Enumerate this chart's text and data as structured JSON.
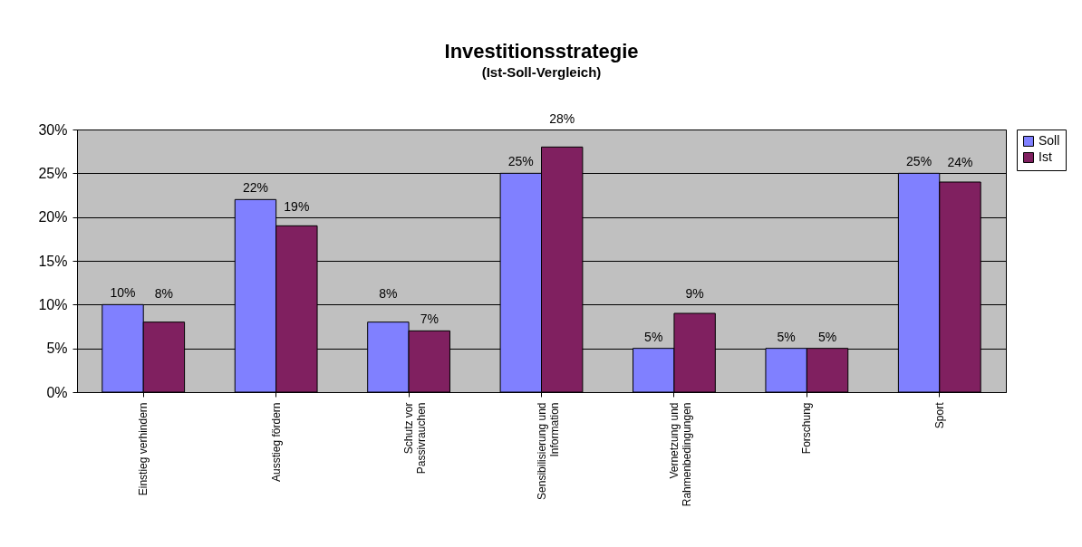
{
  "chart_data": {
    "type": "bar",
    "title": "Investitionsstrategie",
    "subtitle": "(Ist-Soll-Vergleich)",
    "categories": [
      "Einstieg verhindern",
      "Ausstieg fördern",
      "Schutz vor Passivrauchen",
      "Sensibilisierung und Information",
      "Vernetzung und Rahmenbedingungen",
      "Forschung",
      "Sport"
    ],
    "series": [
      {
        "name": "Soll",
        "color": "#8080ff",
        "values": [
          10,
          22,
          8,
          25,
          5,
          5,
          25
        ],
        "value_labels": [
          "10%",
          "22%",
          "8%",
          "25%",
          "5%",
          "5%",
          "25%"
        ]
      },
      {
        "name": "Ist",
        "color": "#802060",
        "values": [
          8,
          19,
          7,
          28,
          9,
          5,
          24
        ],
        "value_labels": [
          "8%",
          "19%",
          "7%",
          "28%",
          "9%",
          "5%",
          "24%"
        ]
      }
    ],
    "ylim": [
      0,
      30
    ],
    "yticks": [
      {
        "value": 0,
        "label": "0%"
      },
      {
        "value": 5,
        "label": "5%"
      },
      {
        "value": 10,
        "label": "10%"
      },
      {
        "value": 15,
        "label": "15%"
      },
      {
        "value": 20,
        "label": "20%"
      },
      {
        "value": 25,
        "label": "25%"
      },
      {
        "value": 30,
        "label": "30%"
      }
    ],
    "grid": "y",
    "legend": "right"
  }
}
